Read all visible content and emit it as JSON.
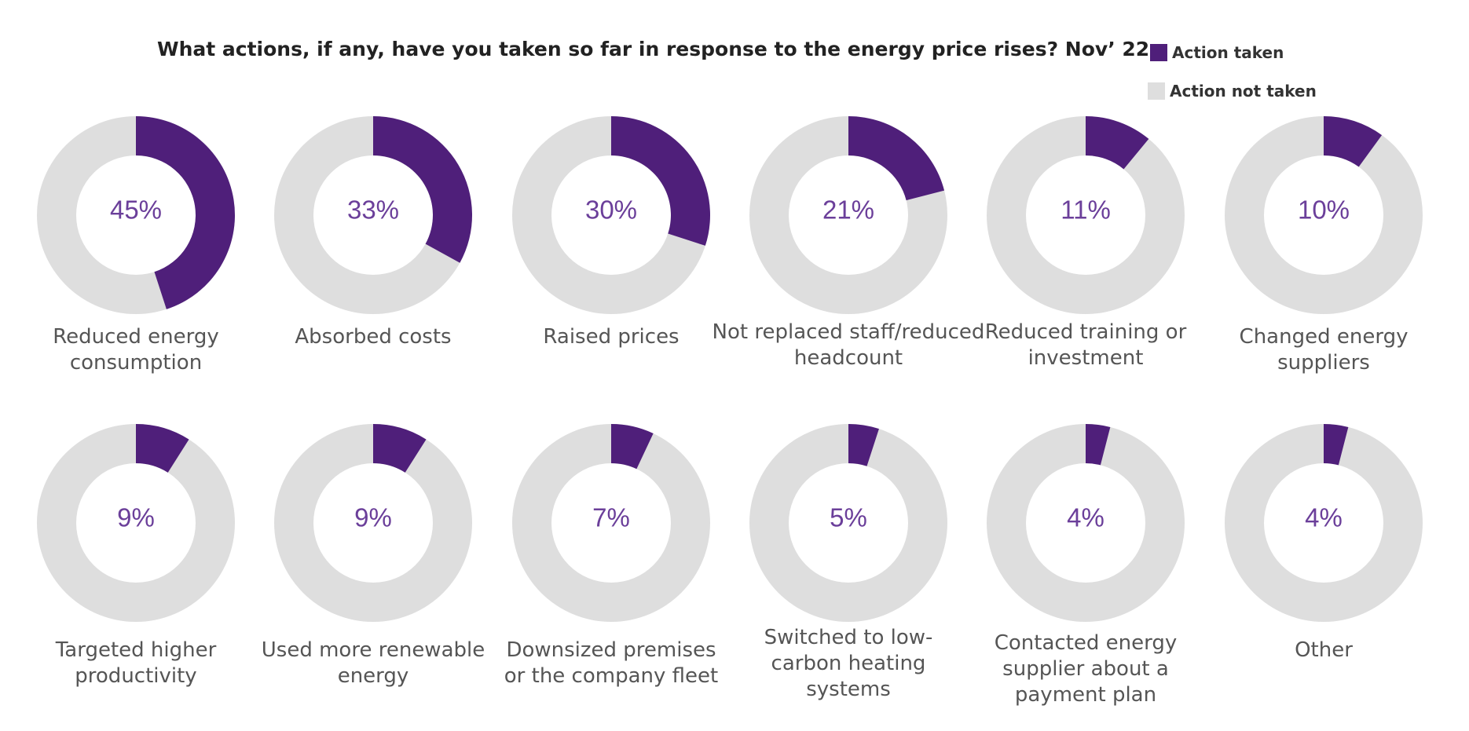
{
  "chart_data": {
    "type": "donut",
    "title": "What actions, if any, have you taken so far in response to the energy price rises? Nov’ 22",
    "legend": [
      {
        "label": "Action taken",
        "color": "#4f1f7a"
      },
      {
        "label": "Action not taken",
        "color": "#dedede"
      }
    ],
    "legend_placement": "top-right",
    "value_label_color": "#6b3f9a",
    "items": [
      {
        "category": [
          "Reduced energy",
          "consumption"
        ],
        "value": 45,
        "label": "45%"
      },
      {
        "category": [
          "Absorbed costs"
        ],
        "value": 33,
        "label": "33%"
      },
      {
        "category": [
          "Raised prices"
        ],
        "value": 30,
        "label": "30%"
      },
      {
        "category": [
          "Not replaced staff/reduced",
          "headcount"
        ],
        "value": 21,
        "label": "21%"
      },
      {
        "category": [
          "Reduced training or",
          "investment"
        ],
        "value": 11,
        "label": "11%"
      },
      {
        "category": [
          "Changed energy",
          "suppliers"
        ],
        "value": 10,
        "label": "10%"
      },
      {
        "category": [
          "Targeted higher",
          "productivity"
        ],
        "value": 9,
        "label": "9%"
      },
      {
        "category": [
          "Used more renewable",
          "energy"
        ],
        "value": 9,
        "label": "9%"
      },
      {
        "category": [
          "Downsized premises",
          "or the company fleet"
        ],
        "value": 7,
        "label": "7%"
      },
      {
        "category": [
          "Switched to low-",
          "carbon heating",
          "systems"
        ],
        "value": 5,
        "label": "5%"
      },
      {
        "category": [
          "Contacted energy",
          "supplier about a",
          "payment plan"
        ],
        "value": 4,
        "label": "4%"
      },
      {
        "category": [
          "Other"
        ],
        "value": 4,
        "label": "4%"
      }
    ]
  }
}
